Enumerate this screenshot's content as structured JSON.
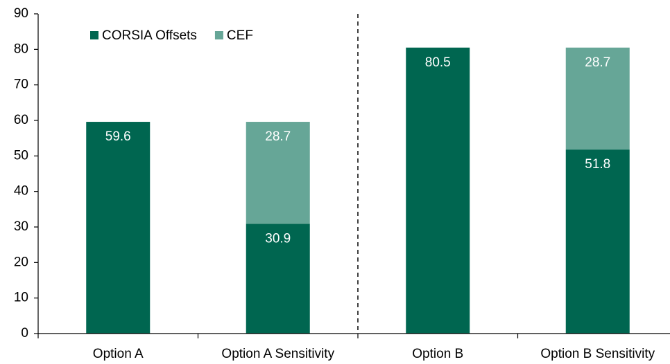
{
  "chart_data": {
    "type": "stacked_bar",
    "categories": [
      "Option A",
      "Option A Sensitivity",
      "Option B",
      "Option B Sensitivity"
    ],
    "series": [
      {
        "name": "CORSIA Offsets",
        "color": "#006650",
        "values": [
          59.6,
          30.9,
          80.5,
          51.8
        ]
      },
      {
        "name": "CEF",
        "color": "#66a697",
        "values": [
          null,
          28.7,
          null,
          28.7
        ]
      }
    ],
    "ylim": [
      0,
      90
    ],
    "yticks": [
      0,
      10,
      20,
      30,
      40,
      50,
      60,
      70,
      80,
      90
    ],
    "legend": "top-left"
  }
}
